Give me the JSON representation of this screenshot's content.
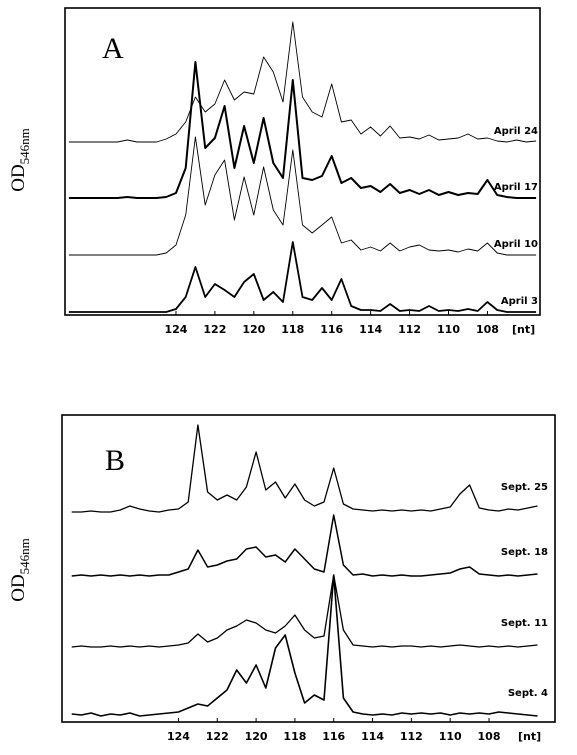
{
  "chart_data": [
    {
      "type": "line",
      "panel": "A",
      "ylabel": "OD",
      "ylabel_sub": "546nm",
      "xlabel": "[nt]",
      "xlim": [
        129.7,
        105.3
      ],
      "xticks": [
        124,
        122,
        120,
        118,
        116,
        114,
        112,
        110,
        108
      ],
      "x": [
        129.5,
        129,
        128.5,
        128,
        127.5,
        127,
        126.5,
        126,
        125.5,
        125,
        124.5,
        124,
        123.5,
        123,
        122.5,
        122,
        121.5,
        121,
        120.5,
        120,
        119.5,
        119,
        118.5,
        118,
        117.5,
        117,
        116.5,
        116,
        115.5,
        115,
        114.5,
        114,
        113.5,
        113,
        112.5,
        112,
        111.5,
        111,
        110.5,
        110,
        109.5,
        109,
        108.5,
        108,
        107.5,
        107,
        106.5,
        106,
        105.5
      ],
      "series": [
        {
          "name": "April 24",
          "color": "#000000",
          "values": [
            0,
            0,
            0,
            0,
            0,
            0,
            2,
            0,
            0,
            0,
            3,
            8,
            20,
            45,
            30,
            38,
            62,
            42,
            50,
            48,
            85,
            70,
            40,
            120,
            45,
            30,
            25,
            58,
            20,
            22,
            8,
            15,
            6,
            16,
            4,
            5,
            3,
            7,
            2,
            3,
            4,
            8,
            3,
            4,
            1,
            0,
            2,
            0,
            1
          ]
        },
        {
          "name": "April 17",
          "color": "#000000",
          "values": [
            0,
            0,
            0,
            0,
            0,
            0,
            1,
            0,
            0,
            0,
            1,
            5,
            30,
            136,
            50,
            60,
            92,
            30,
            72,
            35,
            80,
            35,
            20,
            118,
            20,
            18,
            22,
            42,
            15,
            20,
            10,
            12,
            6,
            14,
            5,
            8,
            4,
            8,
            3,
            6,
            3,
            5,
            4,
            18,
            3,
            1,
            0,
            0,
            0
          ]
        },
        {
          "name": "April 10",
          "color": "#000000",
          "values": [
            0,
            0,
            0,
            0,
            0,
            0,
            0,
            0,
            0,
            0,
            2,
            10,
            40,
            118,
            50,
            80,
            95,
            35,
            78,
            40,
            88,
            45,
            30,
            105,
            30,
            22,
            30,
            38,
            12,
            15,
            5,
            8,
            4,
            12,
            4,
            8,
            10,
            5,
            4,
            5,
            3,
            6,
            4,
            12,
            2,
            0,
            0,
            0,
            0
          ]
        },
        {
          "name": "April 3",
          "color": "#000000",
          "values": [
            0,
            0,
            0,
            0,
            0,
            0,
            0,
            0,
            0,
            0,
            0,
            3,
            15,
            45,
            15,
            28,
            22,
            15,
            30,
            38,
            12,
            20,
            10,
            70,
            15,
            12,
            24,
            12,
            33,
            6,
            2,
            2,
            1,
            8,
            1,
            2,
            1,
            6,
            1,
            2,
            1,
            3,
            1,
            10,
            2,
            0,
            0,
            0,
            0
          ]
        }
      ]
    },
    {
      "type": "line",
      "panel": "B",
      "ylabel": "OD",
      "ylabel_sub": "546nm",
      "xlabel": "[nt]",
      "xlim": [
        130,
        104.6
      ],
      "xticks": [
        124,
        122,
        120,
        118,
        116,
        114,
        112,
        110,
        108
      ],
      "x": [
        129.5,
        129,
        128.5,
        128,
        127.5,
        127,
        126.5,
        126,
        125.5,
        125,
        124.5,
        124,
        123.5,
        123,
        122.5,
        122,
        121.5,
        121,
        120.5,
        120,
        119.5,
        119,
        118.5,
        118,
        117.5,
        117,
        116.5,
        116,
        115.5,
        115,
        114.5,
        114,
        113.5,
        113,
        112.5,
        112,
        111.5,
        111,
        110.5,
        110,
        109.5,
        109,
        108.5,
        108,
        107.5,
        107,
        106.5,
        106,
        105.5
      ],
      "series": [
        {
          "name": "Sept. 25",
          "color": "#000000",
          "values": [
            0,
            0,
            1,
            0,
            0,
            2,
            6,
            3,
            1,
            0,
            2,
            3,
            10,
            87,
            20,
            12,
            17,
            12,
            25,
            60,
            22,
            30,
            14,
            28,
            12,
            6,
            10,
            44,
            8,
            3,
            2,
            1,
            2,
            1,
            2,
            1,
            2,
            1,
            3,
            5,
            18,
            27,
            4,
            2,
            1,
            3,
            2,
            4,
            6
          ]
        },
        {
          "name": "Sept. 18",
          "color": "#000000",
          "values": [
            1,
            2,
            1,
            2,
            1,
            2,
            1,
            2,
            1,
            2,
            2,
            5,
            8,
            27,
            10,
            12,
            16,
            18,
            28,
            30,
            20,
            22,
            15,
            28,
            18,
            8,
            5,
            62,
            12,
            2,
            3,
            1,
            2,
            1,
            2,
            1,
            1,
            2,
            3,
            4,
            8,
            10,
            3,
            2,
            1,
            2,
            1,
            2,
            3
          ]
        },
        {
          "name": "Sept. 11",
          "color": "#000000",
          "values": [
            1,
            2,
            1,
            1,
            2,
            1,
            2,
            1,
            2,
            1,
            2,
            3,
            5,
            14,
            6,
            10,
            18,
            22,
            28,
            25,
            18,
            15,
            22,
            33,
            18,
            10,
            12,
            73,
            18,
            3,
            2,
            1,
            2,
            1,
            2,
            2,
            1,
            2,
            1,
            2,
            3,
            2,
            1,
            2,
            1,
            2,
            1,
            2,
            3
          ]
        },
        {
          "name": "Sept. 4",
          "color": "#000000",
          "values": [
            4,
            3,
            5,
            2,
            4,
            3,
            5,
            2,
            3,
            4,
            5,
            6,
            10,
            14,
            12,
            20,
            28,
            48,
            35,
            53,
            30,
            70,
            83,
            45,
            15,
            23,
            18,
            143,
            20,
            6,
            4,
            3,
            4,
            3,
            5,
            4,
            5,
            4,
            5,
            3,
            5,
            4,
            5,
            4,
            6,
            5,
            4,
            3,
            2
          ]
        }
      ]
    }
  ]
}
